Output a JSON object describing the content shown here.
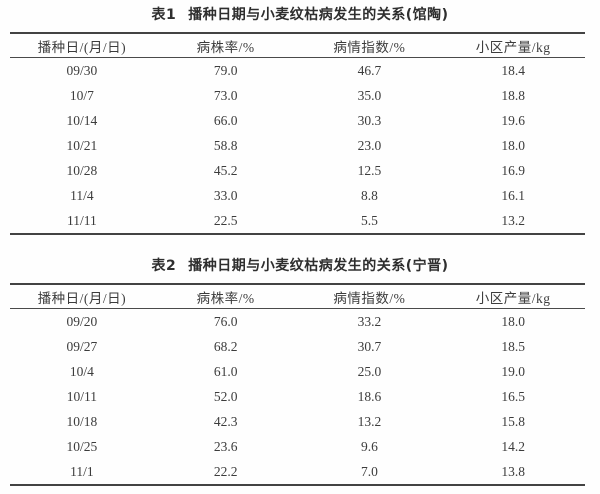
{
  "page": {
    "background": "#fefefe",
    "text_color": "#3c3c3c",
    "rule_color": "#434343"
  },
  "tables": [
    {
      "title_prefix": "表1",
      "title": "播种日期与小麦纹枯病发生的关系(馆陶)",
      "columns": [
        "播种日/(月/日)",
        "病株率/%",
        "病情指数/%",
        "小区产量/kg"
      ],
      "rows": [
        [
          "09/30",
          "79.0",
          "46.7",
          "18.4"
        ],
        [
          "10/7",
          "73.0",
          "35.0",
          "18.8"
        ],
        [
          "10/14",
          "66.0",
          "30.3",
          "19.6"
        ],
        [
          "10/21",
          "58.8",
          "23.0",
          "18.0"
        ],
        [
          "10/28",
          "45.2",
          "12.5",
          "16.9"
        ],
        [
          "11/4",
          "33.0",
          "8.8",
          "16.1"
        ],
        [
          "11/11",
          "22.5",
          "5.5",
          "13.2"
        ]
      ]
    },
    {
      "title_prefix": "表2",
      "title": "播种日期与小麦纹枯病发生的关系(宁晋)",
      "columns": [
        "播种日/(月/日)",
        "病株率/%",
        "病情指数/%",
        "小区产量/kg"
      ],
      "rows": [
        [
          "09/20",
          "76.0",
          "33.2",
          "18.0"
        ],
        [
          "09/27",
          "68.2",
          "30.7",
          "18.5"
        ],
        [
          "10/4",
          "61.0",
          "25.0",
          "19.0"
        ],
        [
          "10/11",
          "52.0",
          "18.6",
          "16.5"
        ],
        [
          "10/18",
          "42.3",
          "13.2",
          "15.8"
        ],
        [
          "10/25",
          "23.6",
          "9.6",
          "14.2"
        ],
        [
          "11/1",
          "22.2",
          "7.0",
          "13.8"
        ]
      ]
    }
  ]
}
